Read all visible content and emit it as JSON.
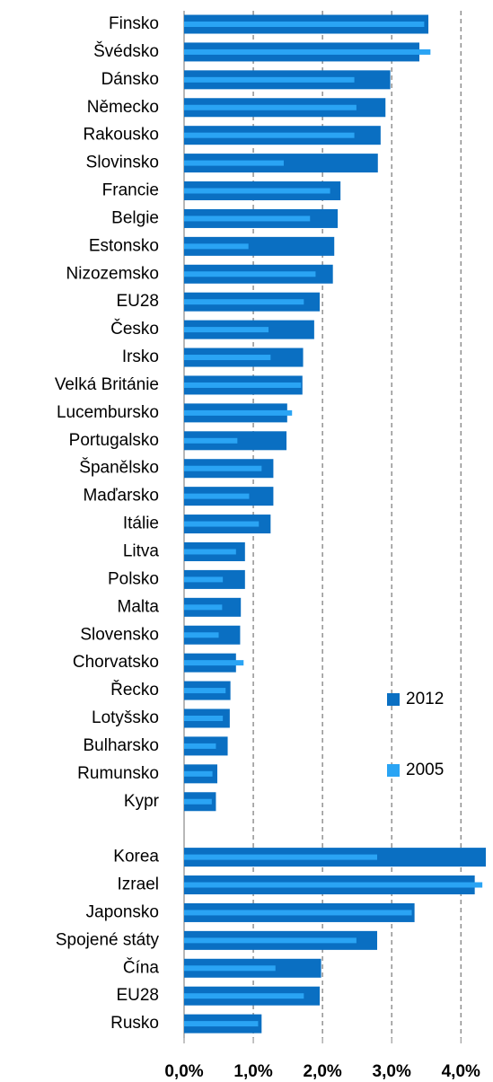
{
  "chart_data": {
    "type": "barh",
    "categories": [
      "Finsko",
      "Švédsko",
      "Dánsko",
      "Německo",
      "Rakousko",
      "Slovinsko",
      "Francie",
      "Belgie",
      "Estonsko",
      "Nizozemsko",
      "EU28",
      "Česko",
      "Irsko",
      "Velká Británie",
      "Lucembursko",
      "Portugalsko",
      "Španělsko",
      "Maďarsko",
      "Itálie",
      "Litva",
      "Polsko",
      "Malta",
      "Slovensko",
      "Chorvatsko",
      "Řecko",
      "Lotyšsko",
      "Bulharsko",
      "Rumunsko",
      "Kypr",
      null,
      "Korea",
      "Izrael",
      "Japonsko",
      "Spojené státy",
      "Čína",
      "EU28",
      "Rusko"
    ],
    "series": [
      {
        "name": "2012",
        "color": "#0a6fc2",
        "values": [
          3.53,
          3.4,
          2.98,
          2.91,
          2.84,
          2.8,
          2.26,
          2.22,
          2.17,
          2.15,
          1.96,
          1.88,
          1.72,
          1.71,
          1.49,
          1.48,
          1.29,
          1.29,
          1.25,
          0.88,
          0.88,
          0.82,
          0.81,
          0.75,
          0.67,
          0.66,
          0.63,
          0.48,
          0.46,
          null,
          4.36,
          4.2,
          3.33,
          2.79,
          1.98,
          1.96,
          1.12
        ]
      },
      {
        "name": "2005",
        "color": "#2aa4f4",
        "values": [
          3.47,
          3.56,
          2.46,
          2.49,
          2.46,
          1.44,
          2.11,
          1.82,
          0.93,
          1.9,
          1.73,
          1.22,
          1.25,
          1.69,
          1.56,
          0.77,
          1.12,
          0.94,
          1.08,
          0.75,
          0.56,
          0.55,
          0.5,
          0.86,
          0.6,
          0.56,
          0.46,
          0.41,
          0.4,
          null,
          2.79,
          4.31,
          3.29,
          2.49,
          1.32,
          1.73,
          1.07
        ]
      }
    ],
    "xlim": [
      0,
      4.36
    ],
    "xticks": [
      {
        "value": 0,
        "label": "0,0%"
      },
      {
        "value": 1,
        "label": "1,0%"
      },
      {
        "value": 2,
        "label": "2,0%"
      },
      {
        "value": 3,
        "label": "3,0%"
      },
      {
        "value": 4,
        "label": "4,0%"
      }
    ],
    "grid": true
  }
}
